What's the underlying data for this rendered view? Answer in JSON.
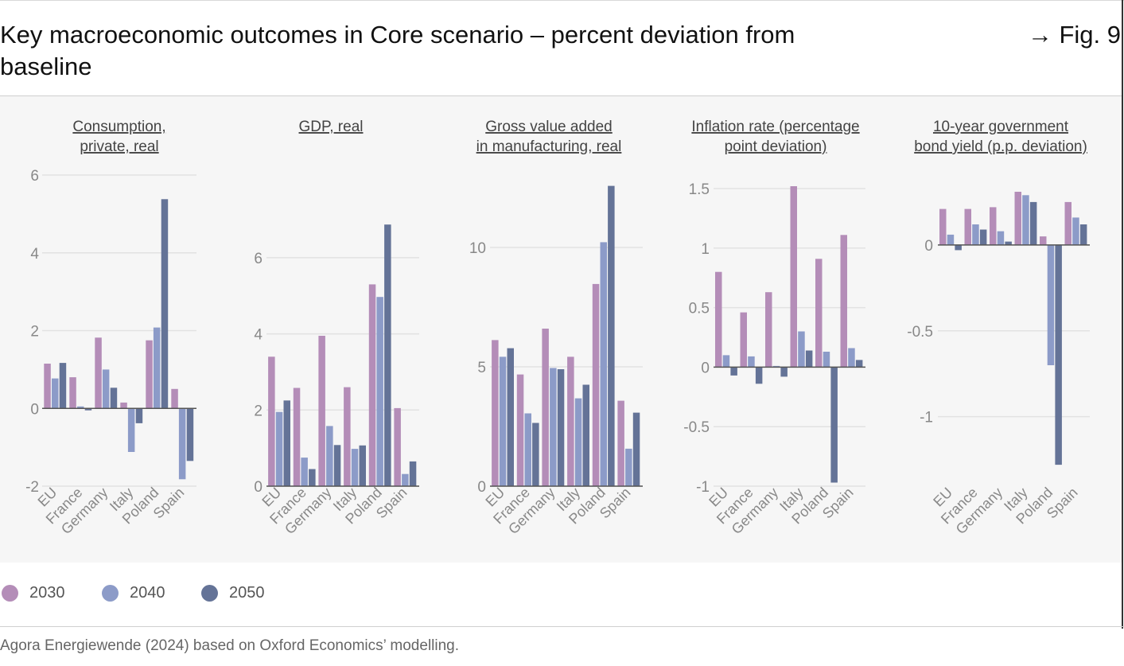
{
  "header": {
    "title": "Key macroeconomic outcomes in Core scenario – percent deviation from baseline",
    "fig_ref": "→ Fig. 9"
  },
  "legend": [
    {
      "label": "2030",
      "color": "#b48db8"
    },
    {
      "label": "2040",
      "color": "#8c9bc8"
    },
    {
      "label": "2050",
      "color": "#647397"
    }
  ],
  "source": "Agora Energiewende (2024) based on Oxford Economics’ modelling.",
  "chart_data": [
    {
      "type": "bar",
      "title": "Consumption, private, real",
      "categories": [
        "EU",
        "France",
        "Germany",
        "Italy",
        "Poland",
        "Spain"
      ],
      "ylim": [
        -2,
        6
      ],
      "yticks": [
        -2,
        0,
        2,
        4,
        6
      ],
      "ytick_labels": [
        "-2",
        "0",
        "2",
        "4",
        "6"
      ],
      "series": [
        {
          "name": "2030",
          "values": [
            1.15,
            0.8,
            1.82,
            0.15,
            1.75,
            0.5
          ]
        },
        {
          "name": "2040",
          "values": [
            0.77,
            0.05,
            1.0,
            -1.12,
            2.08,
            -1.82
          ]
        },
        {
          "name": "2050",
          "values": [
            1.17,
            -0.05,
            0.53,
            -0.38,
            5.38,
            -1.35
          ]
        }
      ]
    },
    {
      "type": "bar",
      "title": "GDP, real",
      "categories": [
        "EU",
        "France",
        "Germany",
        "Italy",
        "Poland",
        "Spain"
      ],
      "ylim": [
        0,
        7
      ],
      "yticks": [
        0,
        2,
        4,
        6
      ],
      "ytick_labels": [
        "0",
        "2",
        "4",
        "6"
      ],
      "series": [
        {
          "name": "2030",
          "values": [
            3.4,
            2.58,
            3.95,
            2.6,
            5.3,
            2.05
          ]
        },
        {
          "name": "2040",
          "values": [
            1.95,
            0.75,
            1.58,
            0.98,
            4.97,
            0.32
          ]
        },
        {
          "name": "2050",
          "values": [
            2.25,
            0.45,
            1.08,
            1.07,
            6.87,
            0.65
          ]
        }
      ]
    },
    {
      "type": "bar",
      "title": "Gross value added in manufacturing, real",
      "categories": [
        "EU",
        "France",
        "Germany",
        "Italy",
        "Poland",
        "Spain"
      ],
      "ylim": [
        0,
        12.6
      ],
      "yticks": [
        0,
        5,
        10
      ],
      "ytick_labels": [
        "0",
        "5",
        "10"
      ],
      "series": [
        {
          "name": "2030",
          "values": [
            6.12,
            4.68,
            6.6,
            5.42,
            8.47,
            3.58
          ]
        },
        {
          "name": "2040",
          "values": [
            5.42,
            3.05,
            4.95,
            3.68,
            10.22,
            1.57
          ]
        },
        {
          "name": "2050",
          "values": [
            5.78,
            2.65,
            4.9,
            4.25,
            12.58,
            3.08
          ]
        }
      ]
    },
    {
      "type": "bar",
      "title": "Inflation rate (percentage point deviation)",
      "categories": [
        "EU",
        "France",
        "Germany",
        "Italy",
        "Poland",
        "Spain"
      ],
      "ylim": [
        -1,
        1.5
      ],
      "yticks": [
        -1,
        -0.5,
        0,
        0.5,
        1,
        1.5
      ],
      "ytick_labels": [
        "-1",
        "-0.5",
        "0",
        "0.5",
        "1",
        "1.5"
      ],
      "series": [
        {
          "name": "2030",
          "values": [
            0.8,
            0.46,
            0.63,
            1.52,
            0.91,
            1.11
          ]
        },
        {
          "name": "2040",
          "values": [
            0.1,
            0.09,
            0.01,
            0.3,
            0.13,
            0.16
          ]
        },
        {
          "name": "2050",
          "values": [
            -0.07,
            -0.14,
            -0.08,
            0.14,
            -0.97,
            0.06
          ]
        }
      ]
    },
    {
      "type": "bar",
      "title": "10-year government bond yield (p.p. deviation)",
      "categories": [
        "EU",
        "France",
        "Germany",
        "Italy",
        "Poland",
        "Spain"
      ],
      "ylim": [
        -1.4,
        0.31
      ],
      "yticks": [
        -1,
        -0.5,
        0
      ],
      "ytick_labels": [
        "-1",
        "-0.5",
        "0"
      ],
      "series": [
        {
          "name": "2030",
          "values": [
            0.21,
            0.21,
            0.22,
            0.31,
            0.05,
            0.25
          ]
        },
        {
          "name": "2040",
          "values": [
            0.06,
            0.12,
            0.08,
            0.29,
            -0.7,
            0.16
          ]
        },
        {
          "name": "2050",
          "values": [
            -0.03,
            0.09,
            0.02,
            0.25,
            -1.28,
            0.12
          ]
        }
      ]
    }
  ]
}
